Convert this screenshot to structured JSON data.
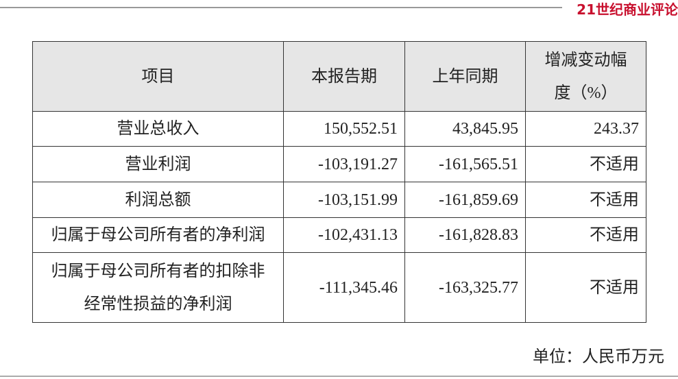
{
  "brand": "21世纪商业评论",
  "table": {
    "header": [
      [
        "项目"
      ],
      [
        "本报告期"
      ],
      [
        "上年同期"
      ],
      [
        "增减变动幅",
        "度（%）"
      ]
    ],
    "rows": [
      [
        [
          "营业总收入"
        ],
        [
          "150,552.51"
        ],
        [
          "43,845.95"
        ],
        [
          "243.37"
        ]
      ],
      [
        [
          "营业利润"
        ],
        [
          "-103,191.27"
        ],
        [
          "-161,565.51"
        ],
        [
          "不适用"
        ]
      ],
      [
        [
          "利润总额"
        ],
        [
          "-103,151.99"
        ],
        [
          "-161,859.69"
        ],
        [
          "不适用"
        ]
      ],
      [
        [
          "归属于母公司所有者的净利润"
        ],
        [
          "-102,431.13"
        ],
        [
          "-161,828.83"
        ],
        [
          "不适用"
        ]
      ],
      [
        [
          "归属于母公司所有者的扣除非",
          "经常性损益的净利润"
        ],
        [
          "-111,345.46"
        ],
        [
          "-163,325.77"
        ],
        [
          "不适用"
        ]
      ]
    ]
  },
  "unit": "单位：人民币万元"
}
